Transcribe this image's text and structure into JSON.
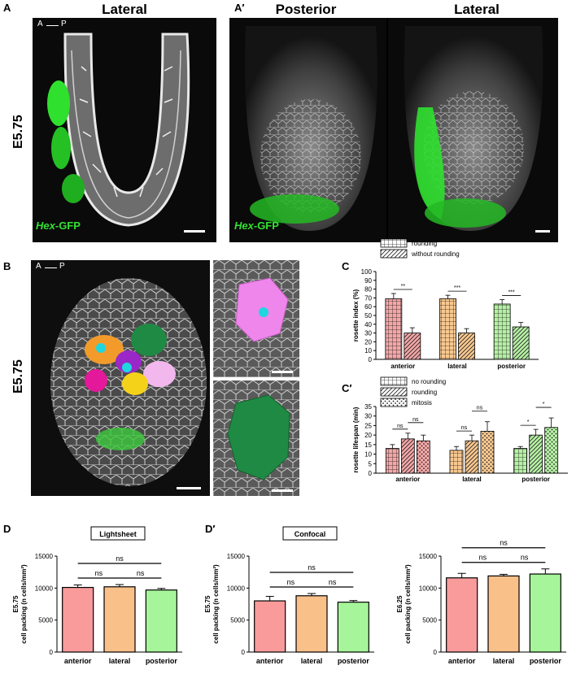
{
  "panels": {
    "A": {
      "letter": "A",
      "title": "Lateral",
      "stage": "E5.75",
      "axis_a": "A",
      "axis_p": "P",
      "hex_italic": "Hex",
      "hex_rest": "-GFP"
    },
    "A2": {
      "letter": "A′",
      "title_left": "Posterior",
      "title_right": "Lateral",
      "hex_italic": "Hex",
      "hex_rest": "-GFP"
    },
    "B": {
      "letter": "B",
      "stage": "E5.75",
      "axis_a": "A",
      "axis_p": "P"
    },
    "C": {
      "letter": "C"
    },
    "C2": {
      "letter": "C′"
    },
    "D": {
      "letter": "D"
    },
    "D2": {
      "letter": "D′"
    }
  },
  "chart_data": [
    {
      "id": "C",
      "type": "bar",
      "ylabel": "rosette index (%)",
      "ylim": [
        0,
        100
      ],
      "yticks": [
        0,
        10,
        20,
        30,
        40,
        50,
        60,
        70,
        80,
        90,
        100
      ],
      "categories": [
        "anterior",
        "lateral",
        "posterior"
      ],
      "colors": [
        "#f4a6a6",
        "#f9c88f",
        "#b5f0a4"
      ],
      "series": [
        {
          "name": "rounding",
          "pattern": "grid",
          "values": [
            69,
            69,
            63
          ],
          "errors": [
            6,
            4,
            5
          ]
        },
        {
          "name": "without rounding",
          "pattern": "hatch",
          "values": [
            30,
            30,
            37
          ],
          "errors": [
            6,
            5,
            5
          ]
        }
      ],
      "significance": [
        "**",
        "***",
        "***"
      ],
      "legend_position": "top"
    },
    {
      "id": "C2",
      "type": "bar",
      "ylabel": "rosette lifespan (min)",
      "ylim": [
        0,
        35
      ],
      "yticks": [
        0,
        5,
        10,
        15,
        20,
        25,
        30,
        35
      ],
      "categories": [
        "anterior",
        "lateral",
        "posterior"
      ],
      "colors": [
        "#f4a6a6",
        "#f9c88f",
        "#b5f0a4"
      ],
      "series": [
        {
          "name": "no rounding",
          "pattern": "grid",
          "values": [
            13,
            12,
            13
          ],
          "errors": [
            2,
            2,
            1
          ]
        },
        {
          "name": "rounding",
          "pattern": "hatch",
          "values": [
            18,
            17,
            20
          ],
          "errors": [
            3,
            3,
            3
          ]
        },
        {
          "name": "mitosis",
          "pattern": "dots",
          "values": [
            17,
            22,
            24
          ],
          "errors": [
            3,
            5,
            5
          ]
        }
      ],
      "significance": [
        [
          "ns",
          "ns"
        ],
        [
          "ns",
          "ns"
        ],
        [
          "*",
          "*"
        ]
      ],
      "legend_position": "top"
    },
    {
      "id": "D",
      "type": "bar",
      "title": "Lightsheet",
      "ylabel_lines": [
        "E5.75",
        "cell packing (n cells/mm²)"
      ],
      "ylim": [
        0,
        15000
      ],
      "yticks": [
        0,
        5000,
        10000,
        15000
      ],
      "categories": [
        "anterior",
        "lateral",
        "posterior"
      ],
      "colors": [
        "#f99b9b",
        "#f9c08a",
        "#a6f59a"
      ],
      "values": [
        10100,
        10200,
        9700
      ],
      "errors": [
        400,
        350,
        250
      ],
      "significance": [
        "ns",
        "ns",
        "ns"
      ]
    },
    {
      "id": "D2a",
      "type": "bar",
      "title": "Confocal",
      "ylabel_lines": [
        "E5.75",
        "cell packing (n cells/mm²)"
      ],
      "ylim": [
        0,
        15000
      ],
      "yticks": [
        0,
        5000,
        10000,
        15000
      ],
      "categories": [
        "anterior",
        "lateral",
        "posterior"
      ],
      "colors": [
        "#f99b9b",
        "#f9c08a",
        "#a6f59a"
      ],
      "values": [
        8000,
        8800,
        7800
      ],
      "errors": [
        700,
        350,
        250
      ],
      "significance": [
        "ns",
        "ns",
        "ns"
      ]
    },
    {
      "id": "D2b",
      "type": "bar",
      "ylabel_lines": [
        "E6.25",
        "cell packing (n cells/mm²)"
      ],
      "ylim": [
        0,
        15000
      ],
      "yticks": [
        0,
        5000,
        10000,
        15000
      ],
      "categories": [
        "anterior",
        "lateral",
        "posterior"
      ],
      "colors": [
        "#f99b9b",
        "#f9c08a",
        "#a6f59a"
      ],
      "values": [
        11600,
        11900,
        12200
      ],
      "errors": [
        700,
        250,
        800
      ],
      "significance": [
        "ns",
        "ns",
        "ns"
      ]
    }
  ]
}
